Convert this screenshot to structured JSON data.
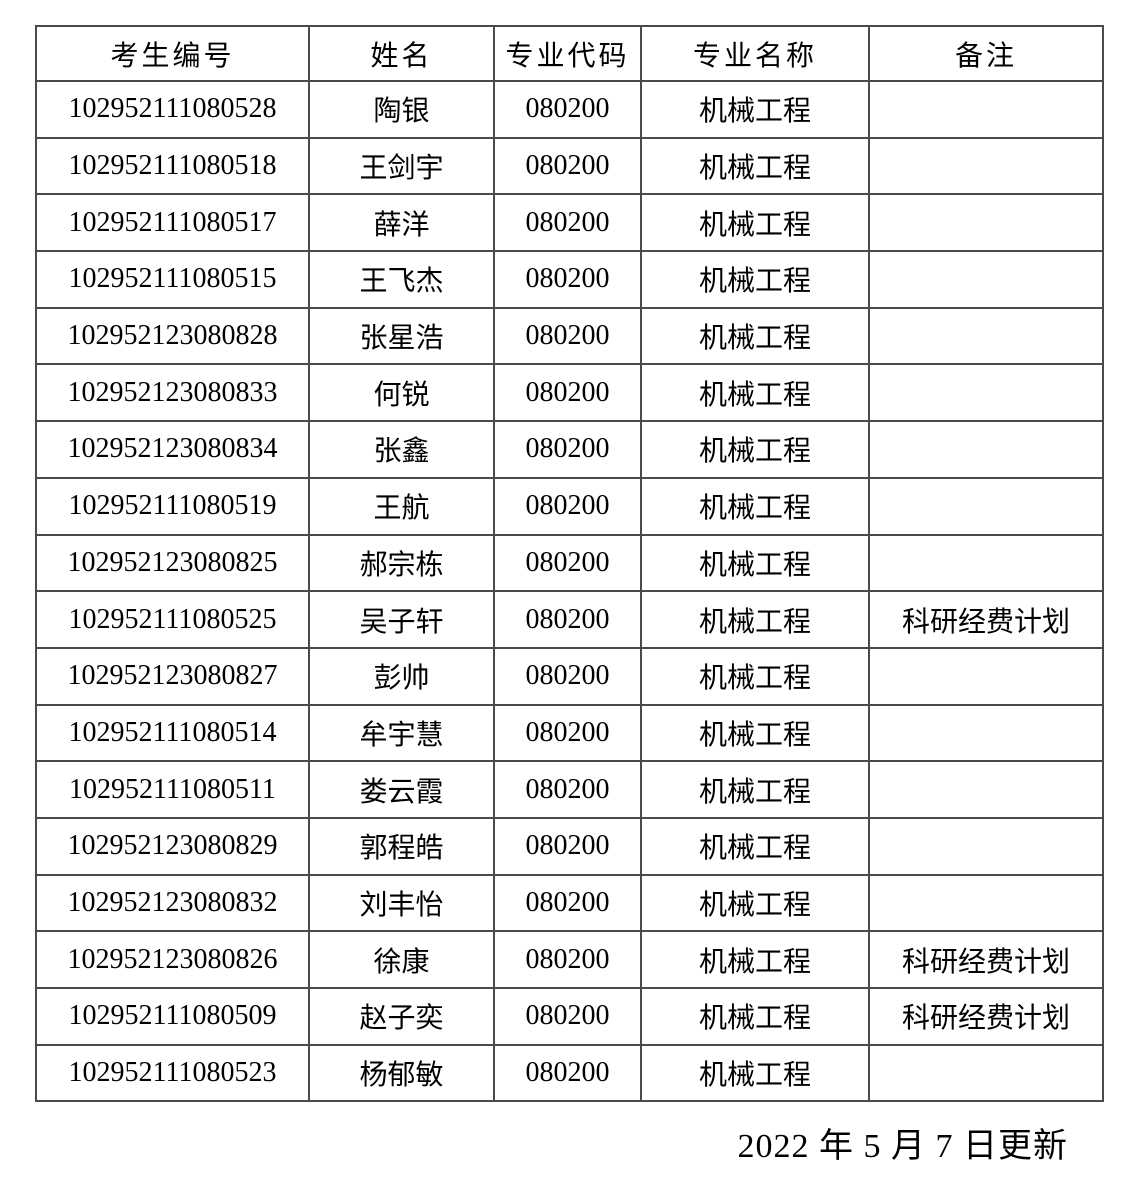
{
  "table": {
    "headers": [
      "考生编号",
      "姓名",
      "专业代码",
      "专业名称",
      "备注"
    ],
    "rows": [
      {
        "id": "102952111080528",
        "name": "陶银",
        "code": "080200",
        "major": "机械工程",
        "note": ""
      },
      {
        "id": "102952111080518",
        "name": "王剑宇",
        "code": "080200",
        "major": "机械工程",
        "note": ""
      },
      {
        "id": "102952111080517",
        "name": "薛洋",
        "code": "080200",
        "major": "机械工程",
        "note": ""
      },
      {
        "id": "102952111080515",
        "name": "王飞杰",
        "code": "080200",
        "major": "机械工程",
        "note": ""
      },
      {
        "id": "102952123080828",
        "name": "张星浩",
        "code": "080200",
        "major": "机械工程",
        "note": ""
      },
      {
        "id": "102952123080833",
        "name": "何锐",
        "code": "080200",
        "major": "机械工程",
        "note": ""
      },
      {
        "id": "102952123080834",
        "name": "张鑫",
        "code": "080200",
        "major": "机械工程",
        "note": ""
      },
      {
        "id": "102952111080519",
        "name": "王航",
        "code": "080200",
        "major": "机械工程",
        "note": ""
      },
      {
        "id": "102952123080825",
        "name": "郝宗栋",
        "code": "080200",
        "major": "机械工程",
        "note": ""
      },
      {
        "id": "102952111080525",
        "name": "吴子轩",
        "code": "080200",
        "major": "机械工程",
        "note": "科研经费计划"
      },
      {
        "id": "102952123080827",
        "name": "彭帅",
        "code": "080200",
        "major": "机械工程",
        "note": ""
      },
      {
        "id": "102952111080514",
        "name": "牟宇慧",
        "code": "080200",
        "major": "机械工程",
        "note": ""
      },
      {
        "id": "102952111080511",
        "name": "娄云霞",
        "code": "080200",
        "major": "机械工程",
        "note": ""
      },
      {
        "id": "102952123080829",
        "name": "郭程皓",
        "code": "080200",
        "major": "机械工程",
        "note": ""
      },
      {
        "id": "102952123080832",
        "name": "刘丰怡",
        "code": "080200",
        "major": "机械工程",
        "note": ""
      },
      {
        "id": "102952123080826",
        "name": "徐康",
        "code": "080200",
        "major": "机械工程",
        "note": "科研经费计划"
      },
      {
        "id": "102952111080509",
        "name": "赵子奕",
        "code": "080200",
        "major": "机械工程",
        "note": "科研经费计划"
      },
      {
        "id": "102952111080523",
        "name": "杨郁敏",
        "code": "080200",
        "major": "机械工程",
        "note": ""
      }
    ]
  },
  "footer": {
    "updated": "2022 年 5 月 7 日更新"
  },
  "colors": {
    "border": "#4a4a4a",
    "text": "#000000",
    "background": "#ffffff"
  }
}
